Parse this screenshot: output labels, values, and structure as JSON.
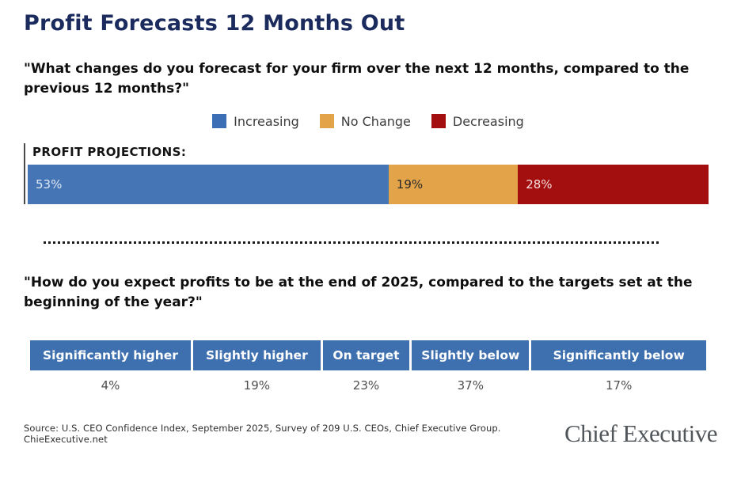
{
  "page": {
    "title": "Profit Forecasts 12 Months Out",
    "question1": "\"What changes do you forecast for your firm over the next 12 months, compared to the previous 12 months?\"",
    "question2": "\"How do you expect profits to be at the end of 2025, compared to the targets set at the beginning of the year?\"",
    "source": "Source: U.S. CEO Confidence Index, September 2025, Survey of 209 U.S. CEOs, Chief Executive Group. ChieExecutive.net",
    "brand": "Chief Executive"
  },
  "colors": {
    "title_navy": "#1b2b5e",
    "increasing_blue": "#4675b5",
    "no_change_gold": "#e2a349",
    "decreasing_red": "#a30e0e",
    "table_header_blue": "#3e6fae"
  },
  "legend": {
    "items": [
      {
        "label": "Increasing",
        "color": "#3b6eb5"
      },
      {
        "label": "No Change",
        "color": "#e2a349"
      },
      {
        "label": "Decreasing",
        "color": "#a30e0e"
      }
    ]
  },
  "chart_data": [
    {
      "type": "bar",
      "subtype": "horizontal-stacked",
      "title": "\"What changes do you forecast for your firm over the next 12 months, compared to the previous 12 months?\"",
      "row_label": "PROFIT PROJECTIONS:",
      "categories": [
        "Increasing",
        "No Change",
        "Decreasing"
      ],
      "values": [
        53,
        19,
        28
      ],
      "labels": [
        "53%",
        "19%",
        "28%"
      ],
      "unit": "percent",
      "colors": [
        "#4675b5",
        "#e2a349",
        "#a30e0e"
      ],
      "xlim": [
        0,
        100
      ],
      "legend_position": "top-center",
      "grid": false
    },
    {
      "type": "table",
      "title": "\"How do you expect profits to be at the end of 2025, compared to the targets set at the beginning of the year?\"",
      "columns": [
        "Significantly higher",
        "Slightly higher",
        "On target",
        "Slightly below",
        "Significantly below"
      ],
      "values": [
        "4%",
        "19%",
        "23%",
        "37%",
        "17%"
      ],
      "header_style": "blue-fill-white-text"
    }
  ]
}
